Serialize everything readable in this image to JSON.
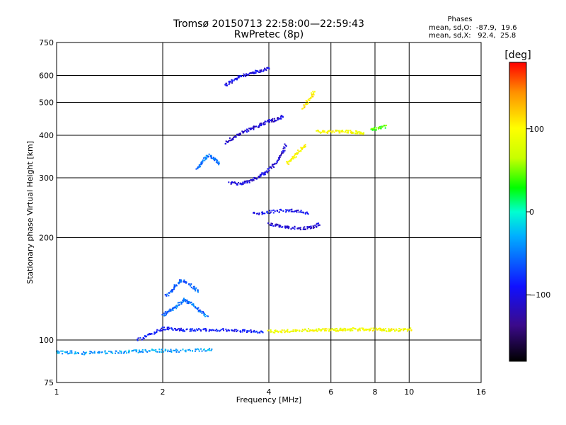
{
  "chart_data": {
    "type": "scatter",
    "title": "Tromsø 20150713 22:58:00—22:59:43",
    "subtitle": "RwPretec (8p)",
    "xlabel": "Frequency [MHz]",
    "ylabel": "Stationary phase Virtual Height [km]",
    "x_scale": "log2",
    "y_scale": "log",
    "xlim": [
      1,
      16
    ],
    "ylim": [
      75,
      750
    ],
    "x_ticks": [
      "1",
      "2",
      "4",
      "6",
      "8",
      "10",
      "16"
    ],
    "y_ticks": [
      "750",
      "600",
      "500",
      "400",
      "300",
      "200",
      "100",
      "75"
    ],
    "grid": true,
    "colorbar": {
      "label": "[deg]",
      "ticks": [
        "100",
        "0",
        "−100"
      ],
      "range": [
        -180,
        180
      ],
      "colors": [
        "#000000",
        "#3b0a8a",
        "#1010ff",
        "#00b0ff",
        "#00ffd0",
        "#00ff00",
        "#c8ff00",
        "#ffff00",
        "#ff9000",
        "#ff0000"
      ]
    },
    "stats": {
      "header": "Phases",
      "line_o": "mean, sd,O:  -87.9,  19.6",
      "line_x": "mean, sd,X:   92.4,  25.8"
    },
    "traces": [
      {
        "f": [
          1.0,
          1.1,
          1.2,
          1.35,
          1.5,
          1.65,
          1.8,
          2.0,
          2.2,
          2.5,
          2.8
        ],
        "h": [
          92,
          92,
          91.5,
          92,
          92,
          92.5,
          93,
          93,
          93,
          93.5,
          94
        ],
        "phase": -35
      },
      {
        "f": [
          1.7,
          1.85,
          2.0,
          2.15,
          2.3,
          2.5,
          2.7,
          3.0,
          3.3,
          3.6,
          3.9
        ],
        "h": [
          100,
          104,
          108,
          108,
          107,
          107,
          107,
          107,
          106.5,
          106,
          106
        ],
        "phase": -90
      },
      {
        "f": [
          2.0,
          2.1,
          2.2,
          2.3,
          2.4,
          2.55,
          2.7
        ],
        "h": [
          118,
          122,
          126,
          132,
          128,
          122,
          117
        ],
        "phase": -55
      },
      {
        "f": [
          2.05,
          2.15,
          2.25,
          2.4,
          2.55
        ],
        "h": [
          135,
          142,
          150,
          145,
          138
        ],
        "phase": -60
      },
      {
        "f": [
          4.0,
          4.3,
          4.6,
          5.0,
          5.4,
          5.8,
          6.2,
          6.6,
          7.0,
          7.5,
          8.0,
          8.5,
          9.0,
          9.6,
          10.2
        ],
        "h": [
          106,
          106,
          106.5,
          107,
          107,
          107,
          107,
          107.5,
          107.5,
          107.5,
          107.5,
          107,
          107,
          107,
          107.5
        ],
        "phase": 95
      },
      {
        "f": [
          3.1,
          3.3,
          3.5,
          3.7,
          3.9,
          4.1,
          4.3,
          4.5
        ],
        "h": [
          290,
          288,
          292,
          300,
          310,
          325,
          345,
          380
        ],
        "phase": -105
      },
      {
        "f": [
          3.0,
          3.2,
          3.4,
          3.6,
          3.8,
          4.0,
          4.2,
          4.4
        ],
        "h": [
          380,
          395,
          410,
          420,
          430,
          440,
          445,
          455
        ],
        "phase": -110
      },
      {
        "f": [
          3.0,
          3.2,
          3.4,
          3.6,
          3.8,
          4.0
        ],
        "h": [
          560,
          585,
          600,
          610,
          620,
          630
        ],
        "phase": -100
      },
      {
        "f": [
          2.5,
          2.6,
          2.7,
          2.8,
          2.9
        ],
        "h": [
          320,
          335,
          350,
          340,
          330
        ],
        "phase": -50
      },
      {
        "f": [
          4.0,
          4.3,
          4.6,
          5.0,
          5.3,
          5.6
        ],
        "h": [
          220,
          216,
          214,
          213,
          214,
          220
        ],
        "phase": -110
      },
      {
        "f": [
          3.6,
          4.0,
          4.4,
          4.8,
          5.2
        ],
        "h": [
          235,
          238,
          240,
          240,
          236
        ],
        "phase": -95
      },
      {
        "f": [
          4.5,
          4.7,
          4.9,
          5.1
        ],
        "h": [
          330,
          345,
          360,
          375
        ],
        "phase": 100
      },
      {
        "f": [
          5.5,
          5.9,
          6.3,
          6.7,
          7.1,
          7.5
        ],
        "h": [
          410,
          410,
          410,
          410,
          408,
          405
        ],
        "phase": 95
      },
      {
        "f": [
          5.0,
          5.2,
          5.4
        ],
        "h": [
          480,
          510,
          540
        ],
        "phase": 110
      },
      {
        "f": [
          7.8,
          8.2,
          8.6
        ],
        "h": [
          415,
          420,
          425
        ],
        "phase": 40
      }
    ]
  }
}
